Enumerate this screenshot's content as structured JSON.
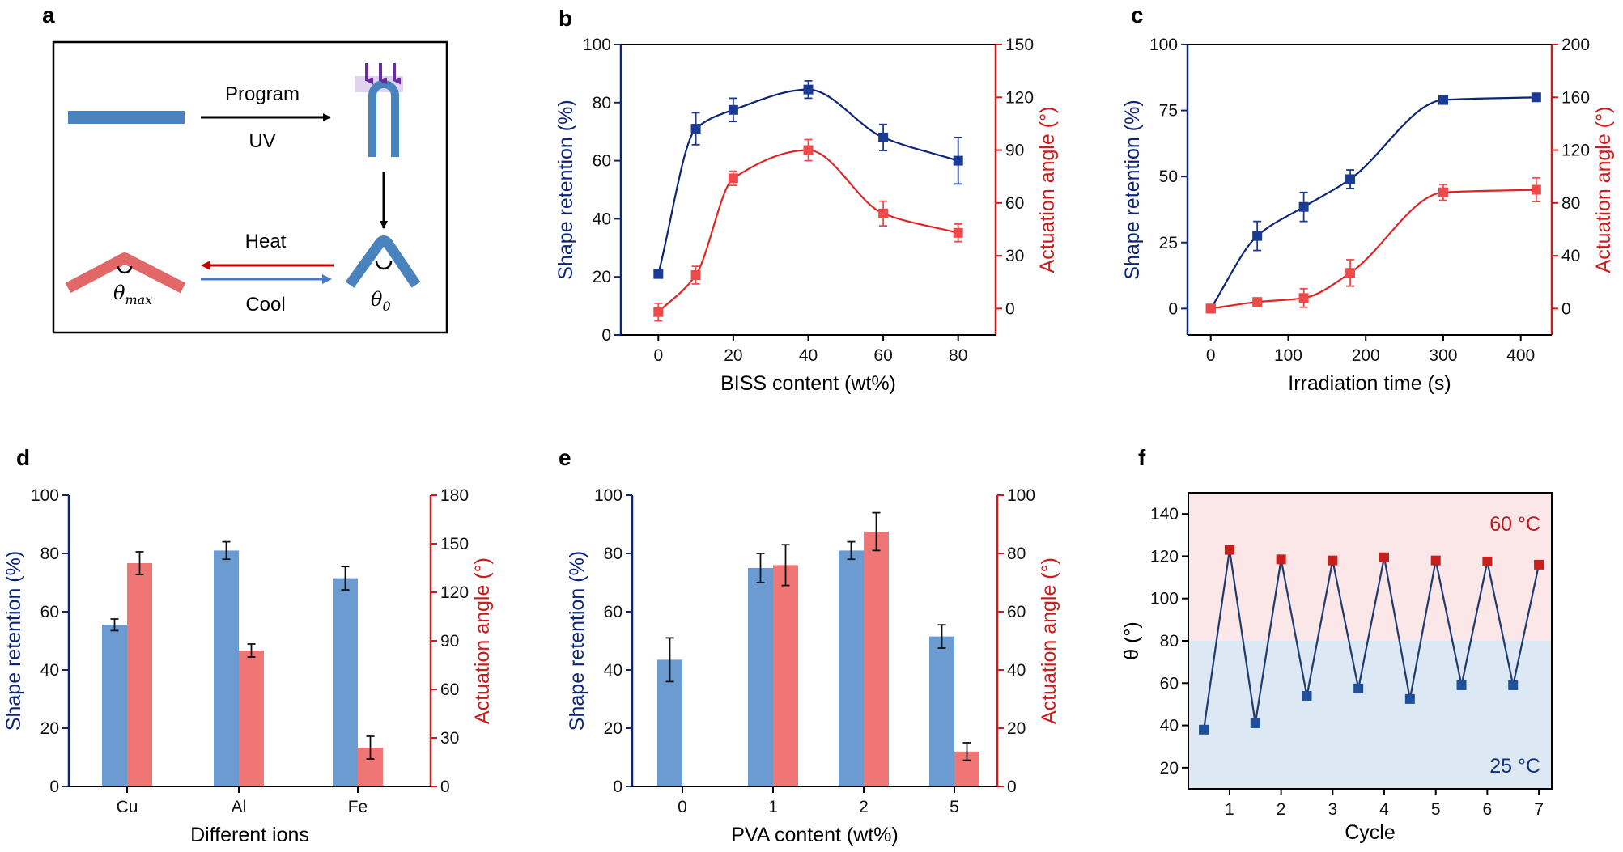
{
  "colors": {
    "blue_axis": "#0c2577",
    "red_axis": "#cc1b1b",
    "blue_marker": "#1a3a96",
    "red_marker": "#ee4a4a",
    "bar_blue": "#6b9bd1",
    "bar_red": "#f07676",
    "hot_zone": "#fbe7e7",
    "cold_zone": "#dde8f5",
    "f_line": "#1e3a6e",
    "f_hot_marker": "#c81e1e",
    "f_cold_marker": "#1f4e9a"
  },
  "panels": {
    "a": {
      "label": "a"
    },
    "b": {
      "label": "b"
    },
    "c": {
      "label": "c"
    },
    "d": {
      "label": "d"
    },
    "e": {
      "label": "e"
    },
    "f": {
      "label": "f"
    }
  },
  "schematic": {
    "program": "Program",
    "uv": "UV",
    "heat": "Heat",
    "cool": "Cool",
    "theta_max": "θ",
    "theta_max_sub": "max",
    "theta_0": "θ",
    "theta_0_sub": "0"
  },
  "chart_data": [
    {
      "panel": "b",
      "type": "scatter",
      "xlabel": "BISS content (wt%)",
      "ylabel_left": "Shape retention (%)",
      "ylabel_right": "Actuation angle (°)",
      "xlim": [
        -10,
        90
      ],
      "ylim_left": [
        0,
        100
      ],
      "ylim_right": [
        -15,
        150
      ],
      "xticks": [
        0,
        20,
        40,
        60,
        80
      ],
      "yticks_left": [
        0,
        20,
        40,
        60,
        80,
        100
      ],
      "yticks_right": [
        0,
        30,
        60,
        90,
        120,
        150
      ],
      "series": [
        {
          "axis": "left",
          "x": [
            0,
            10,
            20,
            40,
            60,
            80
          ],
          "y": [
            21,
            71,
            77.5,
            84.5,
            68,
            60
          ],
          "err": [
            0,
            5.5,
            4,
            3,
            4.5,
            8
          ]
        },
        {
          "axis": "right",
          "x": [
            0,
            10,
            20,
            40,
            60,
            80
          ],
          "y": [
            -2,
            19,
            74,
            90,
            54,
            43
          ],
          "err": [
            5,
            5,
            4,
            6,
            7,
            5
          ]
        }
      ]
    },
    {
      "panel": "c",
      "type": "scatter",
      "xlabel": "Irradiation time (s)",
      "ylabel_left": "Shape retention (%)",
      "ylabel_right": "Actuation angle (°)",
      "xlim": [
        -30,
        440
      ],
      "ylim_left": [
        -10,
        100
      ],
      "ylim_right": [
        -20,
        200
      ],
      "xticks": [
        0,
        100,
        200,
        300,
        400
      ],
      "yticks_left": [
        0,
        25,
        50,
        75,
        100
      ],
      "yticks_right": [
        0,
        40,
        80,
        120,
        160,
        200
      ],
      "series": [
        {
          "axis": "left",
          "x": [
            0,
            60,
            120,
            180,
            300,
            420
          ],
          "y": [
            0,
            27.5,
            38.5,
            49,
            79,
            80
          ],
          "err": [
            0,
            5.5,
            5.5,
            3.5,
            0,
            0
          ]
        },
        {
          "axis": "right",
          "x": [
            0,
            60,
            120,
            180,
            300,
            420
          ],
          "y": [
            0,
            5,
            8,
            27,
            88,
            90
          ],
          "err": [
            0,
            3,
            7,
            10,
            6,
            9
          ]
        }
      ]
    },
    {
      "panel": "d",
      "type": "bar",
      "xlabel": "Different ions",
      "ylabel_left": "Shape retention (%)",
      "ylabel_right": "Actuation angle (°)",
      "categories": [
        "Cu",
        "Al",
        "Fe"
      ],
      "ylim_left": [
        0,
        100
      ],
      "ylim_right": [
        0,
        180
      ],
      "yticks_left": [
        0,
        20,
        40,
        60,
        80,
        100
      ],
      "yticks_right": [
        0,
        30,
        60,
        90,
        120,
        150,
        180
      ],
      "series": [
        {
          "axis": "left",
          "values": [
            55.5,
            81,
            71.5
          ],
          "err": [
            2,
            3,
            4
          ]
        },
        {
          "axis": "right",
          "values": [
            138,
            84,
            24
          ],
          "err": [
            7,
            4,
            7
          ]
        }
      ]
    },
    {
      "panel": "e",
      "type": "bar",
      "xlabel": "PVA content (wt%)",
      "ylabel_left": "Shape retention (%)",
      "ylabel_right": "Actuation angle (°)",
      "categories": [
        "0",
        "1",
        "2",
        "5"
      ],
      "ylim_left": [
        0,
        100
      ],
      "ylim_right": [
        0,
        100
      ],
      "yticks_left": [
        0,
        20,
        40,
        60,
        80,
        100
      ],
      "yticks_right": [
        0,
        20,
        40,
        60,
        80,
        100
      ],
      "series": [
        {
          "axis": "left",
          "values": [
            43.5,
            75,
            81,
            51.5
          ],
          "err": [
            7.5,
            5,
            3,
            4
          ]
        },
        {
          "axis": "right",
          "values": [
            null,
            76,
            87.5,
            12
          ],
          "err": [
            0,
            7,
            6.5,
            3
          ]
        }
      ]
    },
    {
      "panel": "f",
      "type": "line",
      "xlabel": "Cycle",
      "ylabel": "θ (°)",
      "xlim": [
        0.2,
        7.25
      ],
      "ylim": [
        10,
        150
      ],
      "xticks": [
        1,
        2,
        3,
        4,
        5,
        6,
        7
      ],
      "yticks": [
        20,
        40,
        60,
        80,
        100,
        120,
        140
      ],
      "zone_split": 80,
      "hot_label": "60 °C",
      "cold_label": "25 °C",
      "x": [
        0.5,
        1,
        1.5,
        2,
        2.5,
        3,
        3.5,
        4,
        4.5,
        5,
        5.5,
        6,
        6.5,
        7
      ],
      "y": [
        38,
        123,
        41,
        118.5,
        54,
        118,
        57.5,
        119.5,
        52.5,
        118,
        59,
        117.5,
        59,
        116
      ]
    }
  ]
}
